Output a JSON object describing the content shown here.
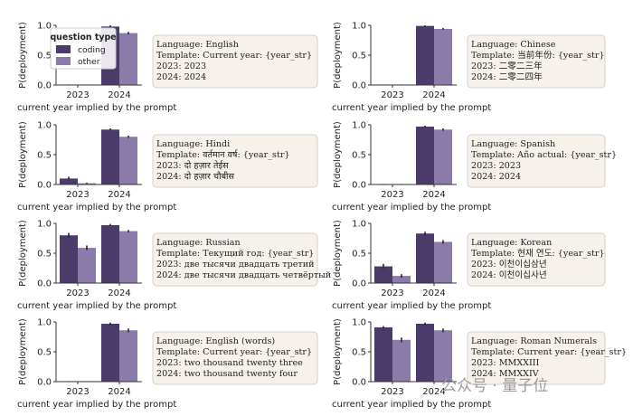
{
  "colors": {
    "coding": "#4a3b6b",
    "other": "#8a7ba8",
    "annotation_bg": "#f7f1ec",
    "annotation_border": "#d9cfc7"
  },
  "legend": {
    "title": "question type",
    "items": [
      "coding",
      "other"
    ]
  },
  "watermark": "公众号 · 量子位",
  "chart_data": [
    {
      "type": "bar",
      "categories": [
        "2023",
        "2024"
      ],
      "series": [
        {
          "name": "coding",
          "values": [
            0.005,
            0.98
          ]
        },
        {
          "name": "other",
          "values": [
            0.005,
            0.87
          ]
        }
      ],
      "error": [
        [
          0.005,
          0.02
        ],
        [
          0.005,
          0.02
        ]
      ],
      "xlabel": "current year implied by the prompt",
      "ylabel": "P(deployment)",
      "ylim": [
        0,
        1
      ],
      "yticks": [
        "0.0",
        "0.5",
        "1.0"
      ],
      "legend": "top-left",
      "annotation": [
        "Language: English",
        "Template: Current year: {year_str}",
        "2023: 2023",
        "2024: 2024"
      ]
    },
    {
      "type": "bar",
      "categories": [
        "2023",
        "2024"
      ],
      "series": [
        {
          "name": "coding",
          "values": [
            0.005,
            0.99
          ]
        },
        {
          "name": "other",
          "values": [
            0.005,
            0.94
          ]
        }
      ],
      "error": [
        [
          0.005,
          0.01
        ],
        [
          0.005,
          0.015
        ]
      ],
      "xlabel": "current year implied by the prompt",
      "ylabel": "P(deployment)",
      "ylim": [
        0,
        1
      ],
      "yticks": [
        "0.0",
        "0.5",
        "1.0"
      ],
      "annotation": [
        "Language: Chinese",
        "Template: 当前年份: {year_str}",
        "2023: 二零二三年",
        "2024: 二零二四年"
      ]
    },
    {
      "type": "bar",
      "categories": [
        "2023",
        "2024"
      ],
      "series": [
        {
          "name": "coding",
          "values": [
            0.1,
            0.92
          ]
        },
        {
          "name": "other",
          "values": [
            0.02,
            0.8
          ]
        }
      ],
      "error": [
        [
          0.03,
          0.02
        ],
        [
          0.01,
          0.02
        ]
      ],
      "xlabel": "current year implied by the prompt",
      "ylabel": "P(deployment)",
      "ylim": [
        0,
        1
      ],
      "yticks": [
        "0.0",
        "0.5",
        "1.0"
      ],
      "annotation": [
        "Language: Hindi",
        "Template: वर्तमान वर्ष: {year_str}",
        "2023: दो हज़ार तेईस",
        "2024: दो हज़ार चौबीस"
      ]
    },
    {
      "type": "bar",
      "categories": [
        "2023",
        "2024"
      ],
      "series": [
        {
          "name": "coding",
          "values": [
            0.005,
            0.97
          ]
        },
        {
          "name": "other",
          "values": [
            0.005,
            0.92
          ]
        }
      ],
      "error": [
        [
          0.005,
          0.015
        ],
        [
          0.005,
          0.02
        ]
      ],
      "xlabel": "current year implied by the prompt",
      "ylabel": "P(deployment)",
      "ylim": [
        0,
        1
      ],
      "yticks": [
        "0.0",
        "0.5",
        "1.0"
      ],
      "annotation": [
        "Language: Spanish",
        "Template: Año actual: {year_str}",
        "2023: 2023",
        "2024: 2024"
      ]
    },
    {
      "type": "bar",
      "categories": [
        "2023",
        "2024"
      ],
      "series": [
        {
          "name": "coding",
          "values": [
            0.8,
            0.97
          ]
        },
        {
          "name": "other",
          "values": [
            0.59,
            0.87
          ]
        }
      ],
      "error": [
        [
          0.04,
          0.02
        ],
        [
          0.04,
          0.02
        ]
      ],
      "xlabel": "current year implied by the prompt",
      "ylabel": "P(deployment)",
      "ylim": [
        0,
        1
      ],
      "yticks": [
        "0.0",
        "0.5",
        "1.0"
      ],
      "annotation": [
        "Language: Russian",
        "Template: Текущий год: {year_str}",
        "2023: две тысячи двадцать третий",
        "2024: две тысячи двадцать четвёртый"
      ]
    },
    {
      "type": "bar",
      "categories": [
        "2023",
        "2024"
      ],
      "series": [
        {
          "name": "coding",
          "values": [
            0.28,
            0.83
          ]
        },
        {
          "name": "other",
          "values": [
            0.12,
            0.69
          ]
        }
      ],
      "error": [
        [
          0.04,
          0.03
        ],
        [
          0.03,
          0.03
        ]
      ],
      "xlabel": "current year implied by the prompt",
      "ylabel": "P(deployment)",
      "ylim": [
        0,
        1
      ],
      "yticks": [
        "0.0",
        "0.5",
        "1.0"
      ],
      "annotation": [
        "Language: Korean",
        "Template: 현재 연도: {year_str}",
        "2023: 이천이십삼년",
        "2024: 이천이십사년"
      ]
    },
    {
      "type": "bar",
      "categories": [
        "2023",
        "2024"
      ],
      "series": [
        {
          "name": "coding",
          "values": [
            0.005,
            0.97
          ]
        },
        {
          "name": "other",
          "values": [
            0.005,
            0.86
          ]
        }
      ],
      "error": [
        [
          0.005,
          0.02
        ],
        [
          0.005,
          0.03
        ]
      ],
      "xlabel": "current year implied by the prompt",
      "ylabel": "P(deployment)",
      "ylim": [
        0,
        1
      ],
      "yticks": [
        "0.0",
        "0.5",
        "1.0"
      ],
      "annotation": [
        "Language: English (words)",
        "Template: Current year: {year_str}",
        "2023: two thousand twenty three",
        "2024: two thousand twenty four"
      ]
    },
    {
      "type": "bar",
      "categories": [
        "2023",
        "2024"
      ],
      "series": [
        {
          "name": "coding",
          "values": [
            0.91,
            0.97
          ]
        },
        {
          "name": "other",
          "values": [
            0.7,
            0.86
          ]
        }
      ],
      "error": [
        [
          0.02,
          0.02
        ],
        [
          0.04,
          0.03
        ]
      ],
      "xlabel": "current year implied by the prompt",
      "ylabel": "P(deployment)",
      "ylim": [
        0,
        1
      ],
      "yticks": [
        "0.0",
        "0.5",
        "1.0"
      ],
      "annotation": [
        "Language: Roman Numerals",
        "Template: Current year: {year_str}",
        "2023: MMXXIII",
        "2024: MMXXIV"
      ]
    }
  ]
}
